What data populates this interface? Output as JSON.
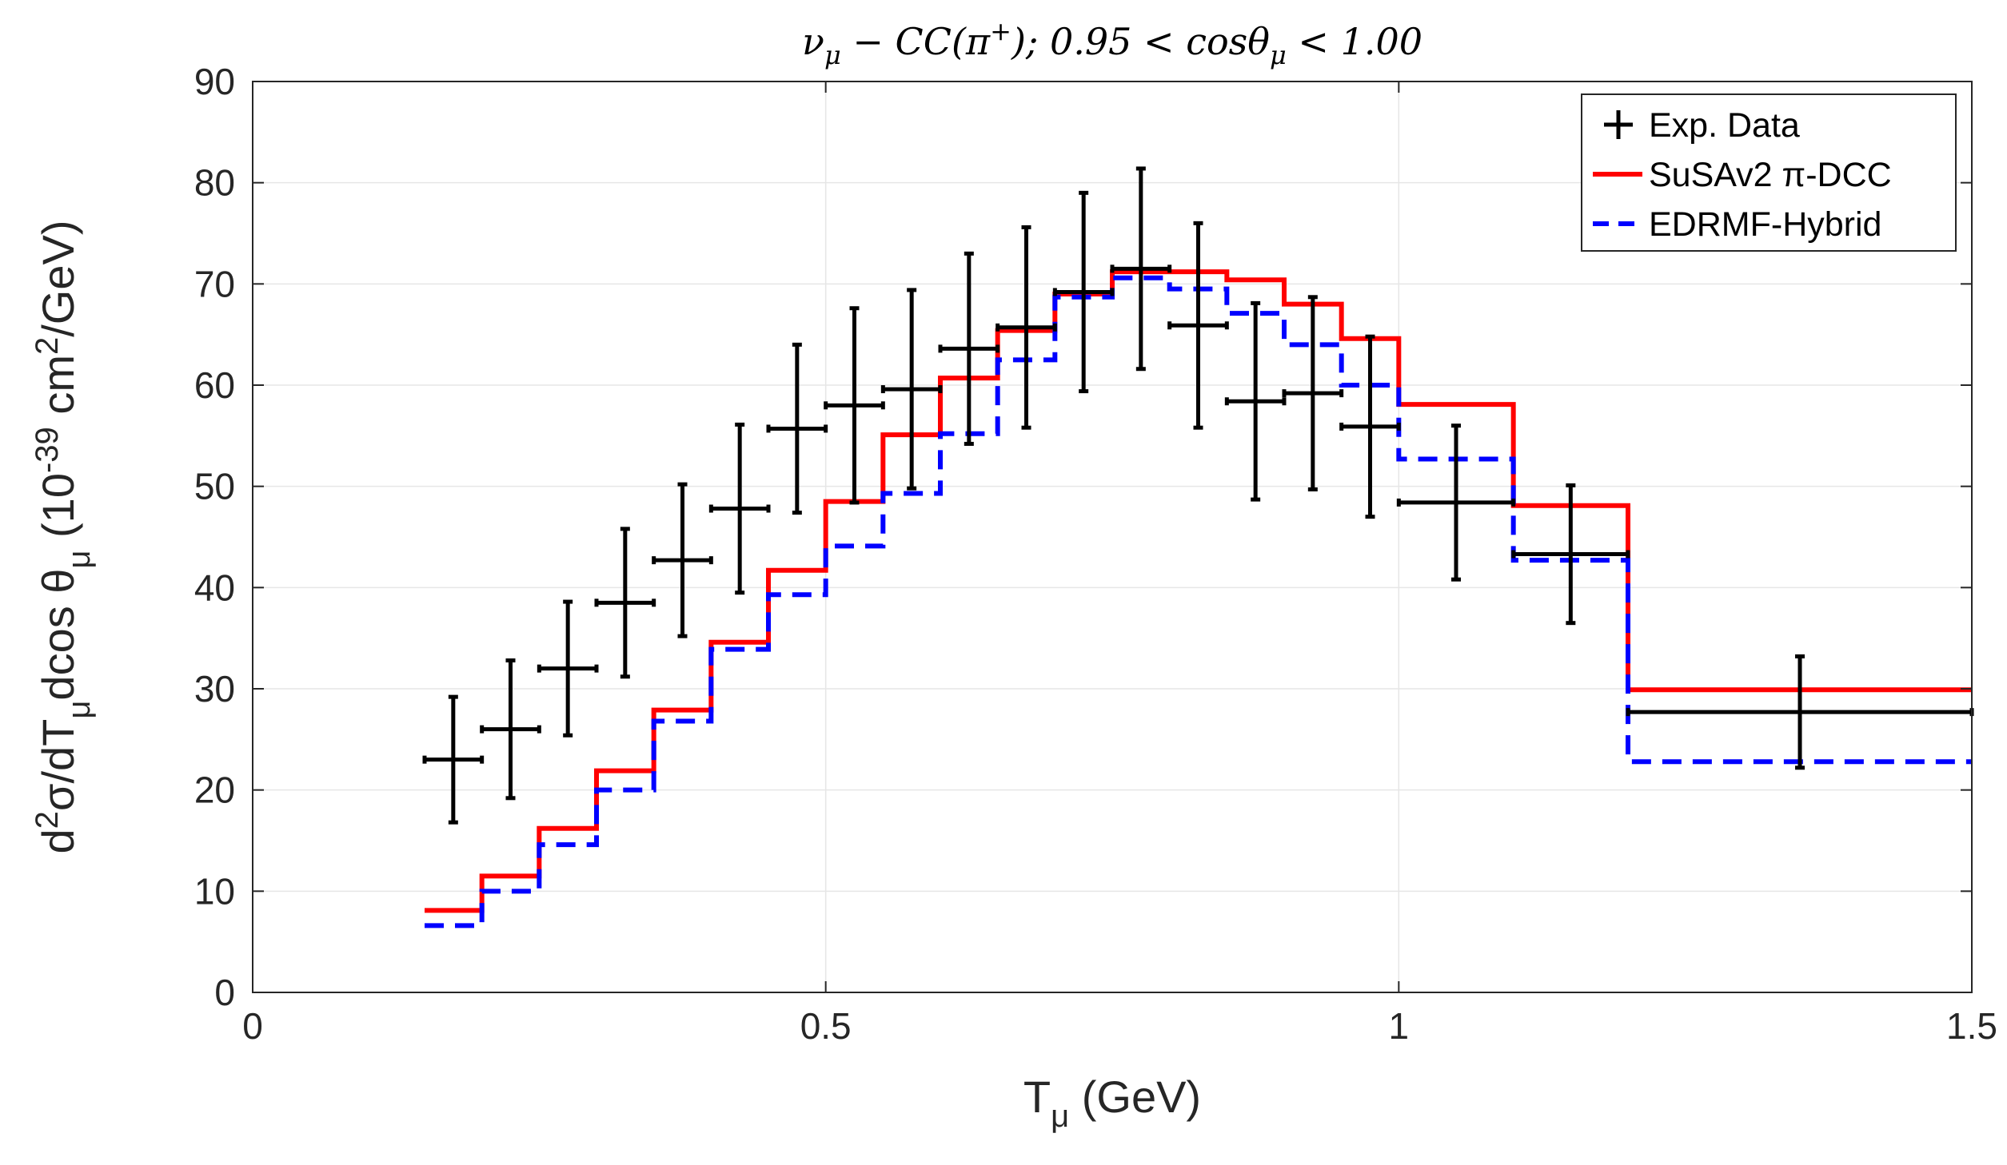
{
  "chart_data": {
    "type": "histogram-step-with-errorbars",
    "title": "ν_μ − CC(π⁺); 0.95 < cosθ_μ < 1.00",
    "title_parts": {
      "nu": "ν",
      "nu_sub": "μ",
      "mid": " − CC(π",
      "sup": "+",
      "rest": "); 0.95 < cosθ",
      "mu_sub": "μ",
      "end": " < 1.00"
    },
    "xlabel": {
      "main": "T",
      "sub": "μ",
      "rest": " (GeV)"
    },
    "ylabel": {
      "p1": "d",
      "p1_sup": "2",
      "p2": "σ/dT",
      "p2_sub": "μ",
      "p3": "dcos θ",
      "p3_sub": "μ",
      "p4": " (10",
      "p4_sup": "-39",
      "p5": " cm",
      "p5_sup": "2",
      "p6": "/GeV)"
    },
    "xlim": [
      0,
      1.5
    ],
    "ylim": [
      0,
      90
    ],
    "xticks": [
      0,
      0.5,
      1,
      1.5
    ],
    "xtick_labels": [
      "0",
      "0.5",
      "1",
      "1.5"
    ],
    "yticks": [
      0,
      10,
      20,
      30,
      40,
      50,
      60,
      70,
      80,
      90
    ],
    "ytick_labels": [
      "0",
      "10",
      "20",
      "30",
      "40",
      "50",
      "60",
      "70",
      "80",
      "90"
    ],
    "grid": true,
    "legend_position": "top-right",
    "bin_edges": [
      0.15,
      0.2,
      0.25,
      0.3,
      0.35,
      0.4,
      0.45,
      0.5,
      0.55,
      0.6,
      0.65,
      0.7,
      0.75,
      0.8,
      0.85,
      0.9,
      0.95,
      1.0,
      1.1,
      1.2,
      1.5
    ],
    "series": [
      {
        "name": "Exp. Data",
        "kind": "errorbar",
        "color": "#000000",
        "values": [
          23,
          26,
          32,
          38.5,
          42.7,
          47.8,
          55.7,
          58,
          59.6,
          63.6,
          65.7,
          69.2,
          71.5,
          65.9,
          58.4,
          59.2,
          55.9,
          48.4,
          43.3,
          27.7
        ],
        "errors": [
          6.2,
          6.8,
          6.6,
          7.3,
          7.5,
          8.3,
          8.3,
          9.6,
          9.8,
          9.4,
          9.9,
          9.8,
          9.9,
          10.1,
          9.7,
          9.5,
          8.9,
          7.6,
          6.8,
          5.5
        ]
      },
      {
        "name": "SuSAv2  π-DCC",
        "kind": "step",
        "color": "#ff0000",
        "dash": false,
        "values": [
          8.1,
          11.5,
          16.2,
          21.9,
          27.9,
          34.6,
          41.7,
          48.5,
          55.1,
          60.7,
          65.4,
          69.0,
          71.2,
          71.2,
          70.4,
          68.0,
          64.6,
          58.1,
          48.1,
          29.9
        ]
      },
      {
        "name": "EDRMF-Hybrid",
        "kind": "step",
        "color": "#0000ff",
        "dash": true,
        "values": [
          6.6,
          10.0,
          14.6,
          20.0,
          26.8,
          33.9,
          39.3,
          44.1,
          49.3,
          55.2,
          62.5,
          68.7,
          70.6,
          69.5,
          67.1,
          64.0,
          60.0,
          52.7,
          42.7,
          22.8
        ]
      }
    ]
  }
}
